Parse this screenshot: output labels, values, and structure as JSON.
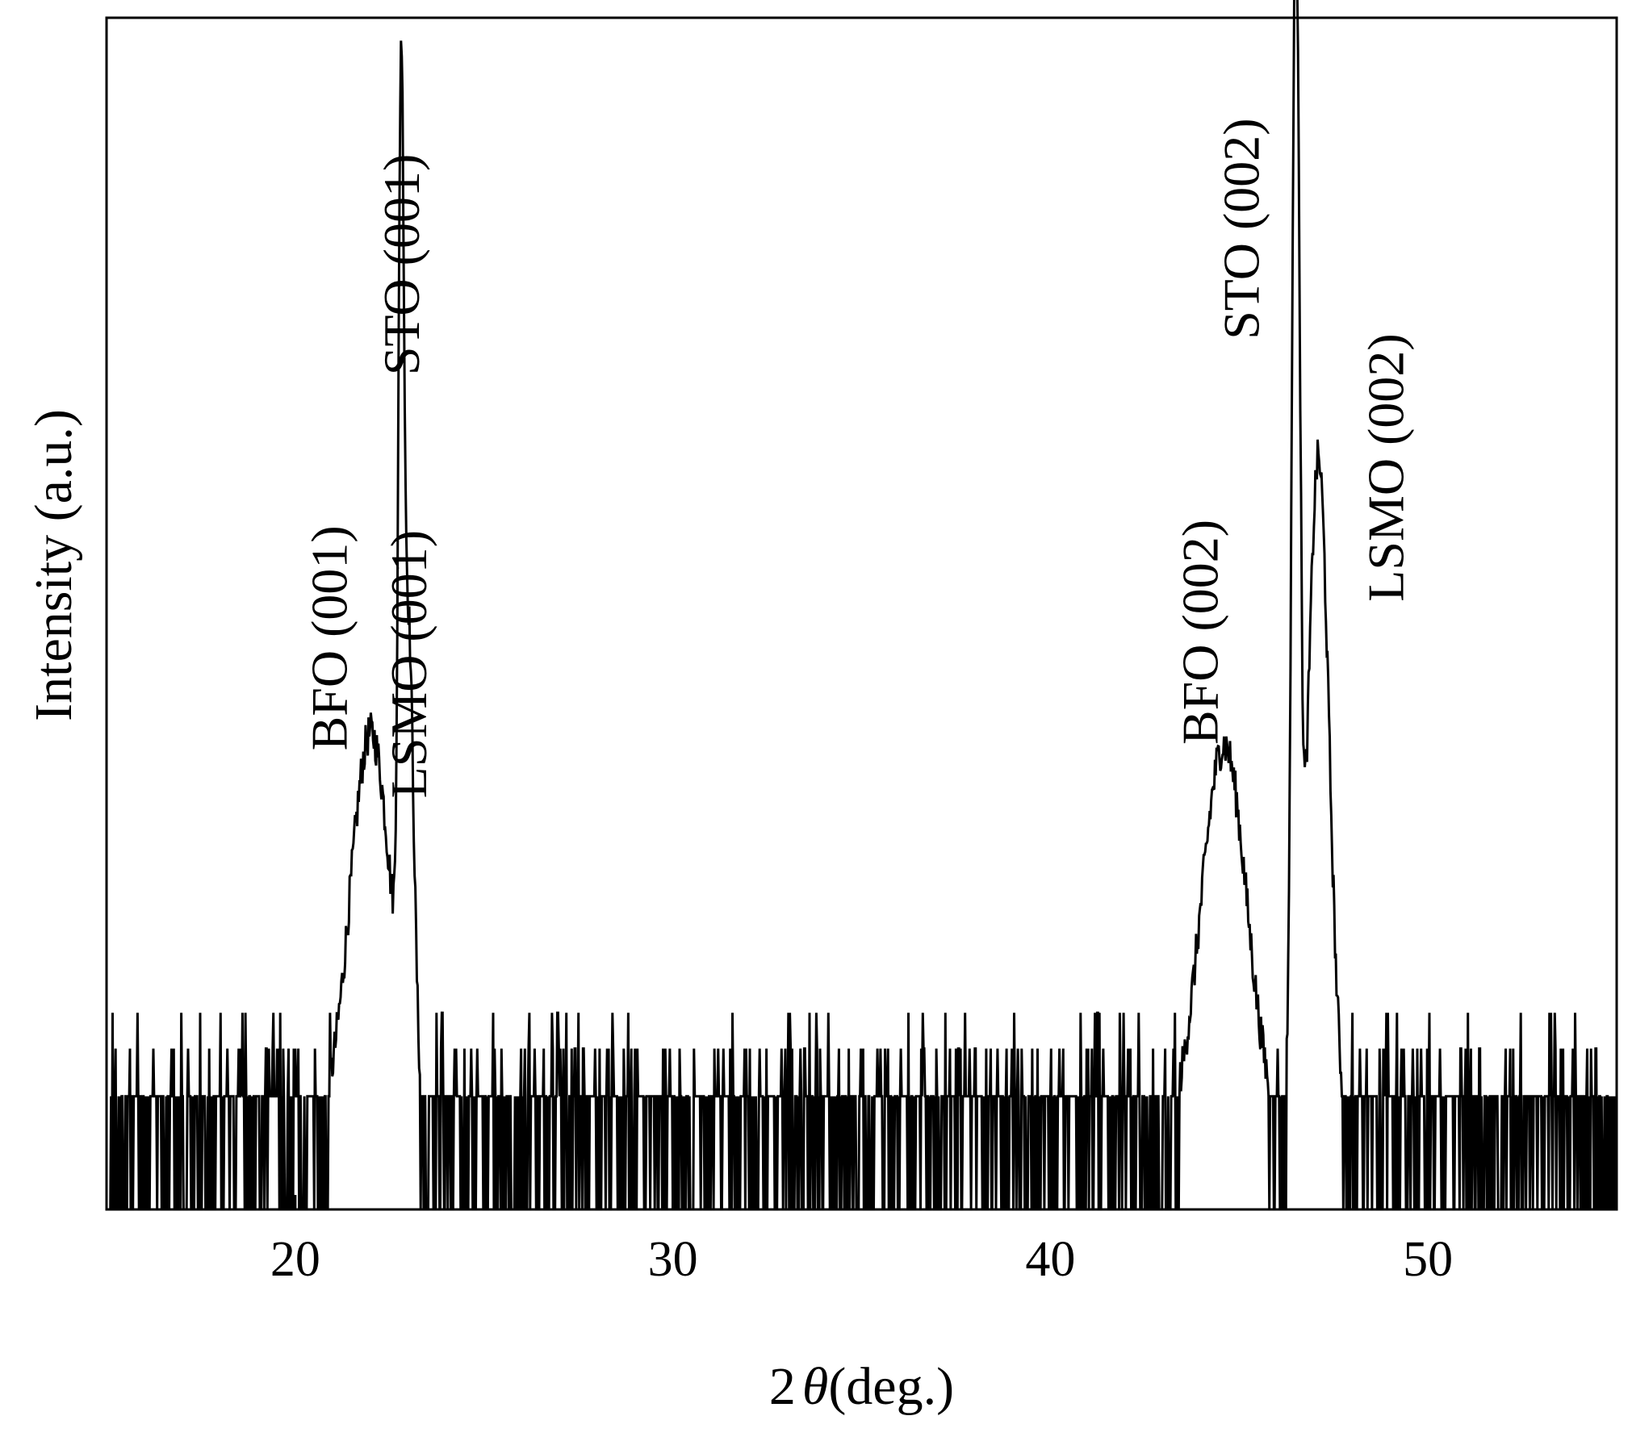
{
  "chart_data": {
    "type": "line",
    "title": "",
    "xlabel_prefix": "2",
    "xlabel_symbol": "θ",
    "xlabel_suffix": "(deg.)",
    "ylabel": "Intensity (a.u.)",
    "xlim": [
      15,
      55
    ],
    "ylim": [
      0,
      1
    ],
    "xticks": [
      20,
      30,
      40,
      50
    ],
    "grid": false,
    "line_color": "#000000",
    "peaks": [
      {
        "label": "BFO (001)",
        "x": 22.0,
        "height": 0.34,
        "width": 0.55
      },
      {
        "label": "STO (001)",
        "x": 22.8,
        "height": 0.67,
        "width": 0.07
      },
      {
        "label": "LSMO (001)",
        "x": 23.0,
        "height": 0.37,
        "width": 0.14
      },
      {
        "label": "BFO (002)",
        "x": 44.6,
        "height": 0.33,
        "width": 0.6
      },
      {
        "label": "STO (002)",
        "x": 46.5,
        "height": 1.0,
        "width": 0.1
      },
      {
        "label": "LSMO (002)",
        "x": 47.1,
        "height": 0.57,
        "width": 0.28
      }
    ],
    "baseline": {
      "level": 0.06,
      "noise_top": 0.095,
      "spike_top": 0.135
    }
  }
}
